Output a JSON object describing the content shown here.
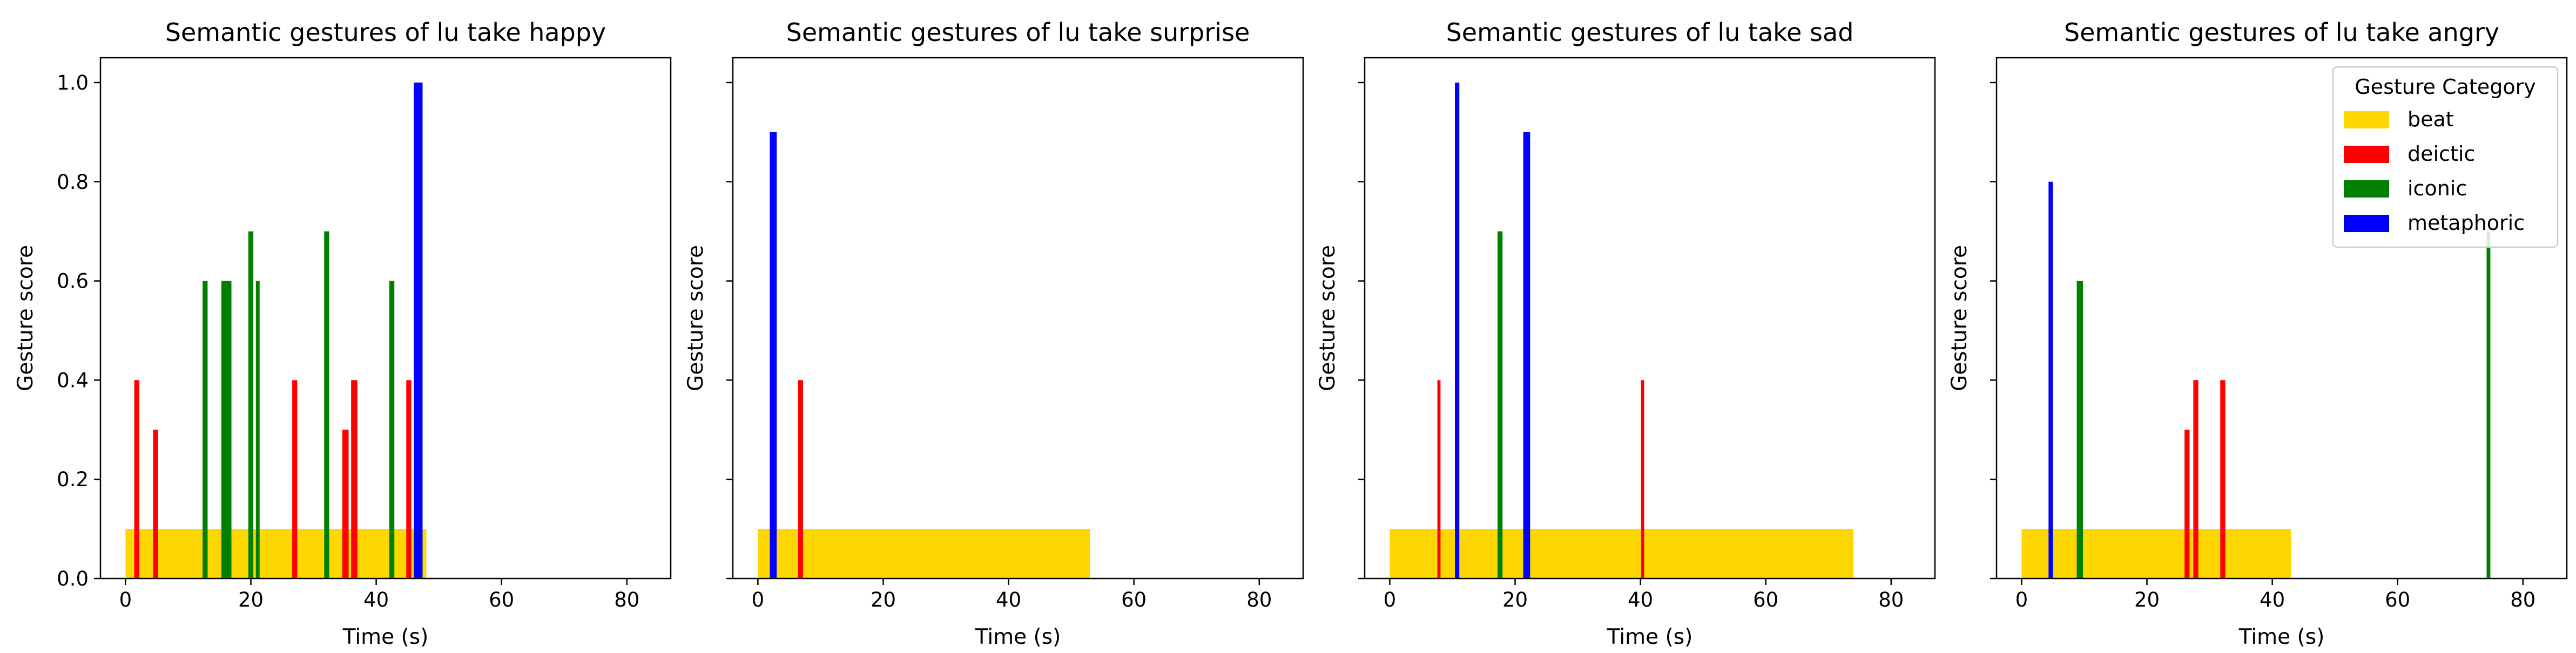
{
  "colors": {
    "beat": "#ffd700",
    "deictic": "#ff0000",
    "iconic": "#008000",
    "metaphoric": "#0000ff"
  },
  "legend": {
    "title": "Gesture Category",
    "entries": [
      "beat",
      "deictic",
      "iconic",
      "metaphoric"
    ],
    "placement": "top-right of last subplot"
  },
  "chart_data": [
    {
      "type": "bar",
      "title": "Semantic gestures of lu take happy",
      "xlabel": "Time (s)",
      "ylabel": "Gesture score",
      "xlim": [
        -4,
        87
      ],
      "ylim": [
        0,
        1.05
      ],
      "xticks": [
        0,
        20,
        40,
        60,
        80
      ],
      "yticks": [
        0.0,
        0.2,
        0.4,
        0.6,
        0.8,
        1.0
      ],
      "show_ytick_labels": true,
      "bars": [
        {
          "category": "beat",
          "start": 0,
          "end": 48,
          "score": 0.1
        },
        {
          "category": "deictic",
          "start": 1.4,
          "end": 2.2,
          "score": 0.4
        },
        {
          "category": "deictic",
          "start": 4.4,
          "end": 5.2,
          "score": 0.3
        },
        {
          "category": "iconic",
          "start": 12.3,
          "end": 13.1,
          "score": 0.6
        },
        {
          "category": "iconic",
          "start": 15.3,
          "end": 16.9,
          "score": 0.6
        },
        {
          "category": "iconic",
          "start": 19.6,
          "end": 20.4,
          "score": 0.7
        },
        {
          "category": "iconic",
          "start": 20.8,
          "end": 21.4,
          "score": 0.6
        },
        {
          "category": "deictic",
          "start": 26.6,
          "end": 27.4,
          "score": 0.4
        },
        {
          "category": "iconic",
          "start": 31.7,
          "end": 32.5,
          "score": 0.7
        },
        {
          "category": "deictic",
          "start": 34.6,
          "end": 35.6,
          "score": 0.3
        },
        {
          "category": "deictic",
          "start": 36.0,
          "end": 37.0,
          "score": 0.4
        },
        {
          "category": "iconic",
          "start": 42.1,
          "end": 42.9,
          "score": 0.6
        },
        {
          "category": "deictic",
          "start": 44.8,
          "end": 45.6,
          "score": 0.4
        },
        {
          "category": "metaphoric",
          "start": 46.0,
          "end": 47.4,
          "score": 1.0
        }
      ]
    },
    {
      "type": "bar",
      "title": "Semantic gestures of lu take surprise",
      "xlabel": "Time (s)",
      "ylabel": "Gesture score",
      "xlim": [
        -4,
        87
      ],
      "ylim": [
        0,
        1.05
      ],
      "xticks": [
        0,
        20,
        40,
        60,
        80
      ],
      "yticks": [
        0.0,
        0.2,
        0.4,
        0.6,
        0.8,
        1.0
      ],
      "show_ytick_labels": false,
      "bars": [
        {
          "category": "beat",
          "start": 0,
          "end": 53,
          "score": 0.1
        },
        {
          "category": "metaphoric",
          "start": 1.9,
          "end": 3.0,
          "score": 0.9
        },
        {
          "category": "deictic",
          "start": 6.4,
          "end": 7.2,
          "score": 0.4
        }
      ]
    },
    {
      "type": "bar",
      "title": "Semantic gestures of lu take sad",
      "xlabel": "Time (s)",
      "ylabel": "Gesture score",
      "xlim": [
        -4,
        87
      ],
      "ylim": [
        0,
        1.05
      ],
      "xticks": [
        0,
        20,
        40,
        60,
        80
      ],
      "yticks": [
        0.0,
        0.2,
        0.4,
        0.6,
        0.8,
        1.0
      ],
      "show_ytick_labels": false,
      "bars": [
        {
          "category": "beat",
          "start": 0,
          "end": 74,
          "score": 0.1
        },
        {
          "category": "deictic",
          "start": 7.6,
          "end": 8.1,
          "score": 0.4
        },
        {
          "category": "metaphoric",
          "start": 10.4,
          "end": 11.1,
          "score": 1.0
        },
        {
          "category": "iconic",
          "start": 17.2,
          "end": 18.0,
          "score": 0.7
        },
        {
          "category": "metaphoric",
          "start": 21.3,
          "end": 22.4,
          "score": 0.9
        },
        {
          "category": "deictic",
          "start": 40.1,
          "end": 40.6,
          "score": 0.4
        }
      ]
    },
    {
      "type": "bar",
      "title": "Semantic gestures of lu take angry",
      "xlabel": "Time (s)",
      "ylabel": "Gesture score",
      "xlim": [
        -4,
        87
      ],
      "ylim": [
        0,
        1.05
      ],
      "xticks": [
        0,
        20,
        40,
        60,
        80
      ],
      "yticks": [
        0.0,
        0.2,
        0.4,
        0.6,
        0.8,
        1.0
      ],
      "show_ytick_labels": false,
      "bars": [
        {
          "category": "beat",
          "start": 0,
          "end": 43,
          "score": 0.1
        },
        {
          "category": "metaphoric",
          "start": 4.3,
          "end": 5.0,
          "score": 0.8
        },
        {
          "category": "iconic",
          "start": 8.8,
          "end": 9.8,
          "score": 0.6
        },
        {
          "category": "deictic",
          "start": 26.0,
          "end": 26.8,
          "score": 0.3
        },
        {
          "category": "deictic",
          "start": 27.4,
          "end": 28.2,
          "score": 0.4
        },
        {
          "category": "deictic",
          "start": 31.7,
          "end": 32.5,
          "score": 0.4
        },
        {
          "category": "iconic",
          "start": 74.2,
          "end": 74.8,
          "score": 0.7
        }
      ]
    }
  ]
}
